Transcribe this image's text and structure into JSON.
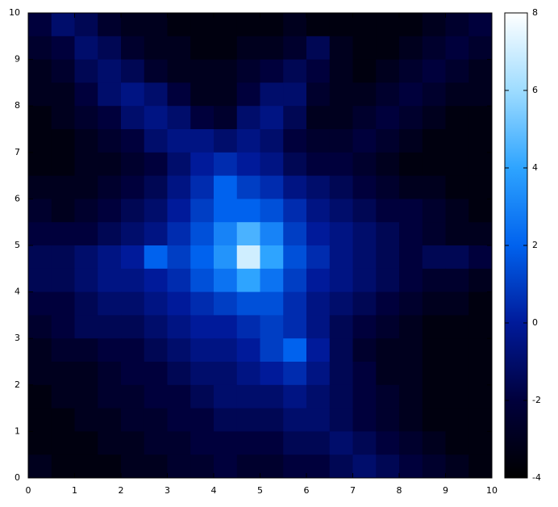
{
  "chart_data": {
    "type": "heatmap",
    "x": [
      0.25,
      0.75,
      1.25,
      1.75,
      2.25,
      2.75,
      3.25,
      3.75,
      4.25,
      4.75,
      5.25,
      5.75,
      6.25,
      6.75,
      7.25,
      7.75,
      8.25,
      8.75,
      9.25,
      9.75
    ],
    "y": [
      9.75,
      9.25,
      8.75,
      8.25,
      7.75,
      7.25,
      6.75,
      6.25,
      5.75,
      5.25,
      4.75,
      4.25,
      3.75,
      3.25,
      2.75,
      2.25,
      1.75,
      1.25,
      0.75,
      0.25
    ],
    "z": [
      [
        -2,
        -1,
        -1.5,
        -2.5,
        -3,
        -3,
        -3.5,
        -3.5,
        -3.5,
        -3.5,
        -3.5,
        -3,
        -3.5,
        -3.5,
        -3.5,
        -3.5,
        -3.5,
        -3,
        -2.5,
        -2
      ],
      [
        -2.5,
        -2,
        -1,
        -1.5,
        -2.5,
        -3,
        -3,
        -3.5,
        -3.5,
        -3,
        -3,
        -2.5,
        -1.5,
        -3,
        -3.5,
        -3.5,
        -3,
        -2.5,
        -2,
        -2.5
      ],
      [
        -3,
        -2.5,
        -1.5,
        -1,
        -1.5,
        -2.5,
        -3,
        -3,
        -3,
        -2.5,
        -2,
        -1.5,
        -2,
        -3,
        -3.5,
        -3,
        -2.5,
        -2,
        -2.5,
        -3
      ],
      [
        -3,
        -3,
        -2,
        -1,
        -0.5,
        -1,
        -2,
        -3,
        -3,
        -2,
        -1,
        -1,
        -2.5,
        -3,
        -3,
        -2.5,
        -2,
        -2.5,
        -3,
        -3
      ],
      [
        -3.5,
        -3,
        -2.5,
        -2,
        -1,
        -0.5,
        -1,
        -2,
        -2.5,
        -1,
        -0.5,
        -1.5,
        -3,
        -3,
        -2.5,
        -2,
        -2.5,
        -3,
        -3.5,
        -3.5
      ],
      [
        -3.5,
        -3.5,
        -3,
        -2.5,
        -2,
        -1,
        -0.5,
        -0.5,
        -1,
        -0.5,
        -1,
        -2,
        -2.5,
        -2.5,
        -2,
        -2.5,
        -3,
        -3.5,
        -3.5,
        -3.5
      ],
      [
        -3.5,
        -3.5,
        -3,
        -3,
        -2.5,
        -2,
        -1,
        0,
        0.5,
        0,
        -0.5,
        -1.5,
        -2,
        -2,
        -2.5,
        -3,
        -3.5,
        -3.5,
        -3.5,
        -3.5
      ],
      [
        -3,
        -3,
        -3,
        -2.5,
        -2,
        -1.5,
        -0.5,
        0.5,
        2,
        1,
        0.5,
        -0.5,
        -1,
        -1.5,
        -2,
        -2.5,
        -3,
        -3,
        -3.5,
        -3.5
      ],
      [
        -2.5,
        -3,
        -2.5,
        -2,
        -1.5,
        -1,
        0,
        1,
        2,
        2,
        1.5,
        0.5,
        -0.5,
        -1,
        -1.5,
        -2,
        -2,
        -2.5,
        -3,
        -3.5
      ],
      [
        -2,
        -2,
        -2,
        -1.5,
        -1,
        -0.5,
        0.5,
        1.5,
        3,
        4.5,
        3,
        1,
        0,
        -0.5,
        -1,
        -1.5,
        -2,
        -2.5,
        -3,
        -3
      ],
      [
        -1.5,
        -1.5,
        -1,
        -0.5,
        0,
        2,
        1,
        2,
        3.5,
        7,
        4,
        1.5,
        0.5,
        -0.5,
        -1,
        -1.5,
        -2,
        -1.5,
        -1.5,
        -2
      ],
      [
        -1.5,
        -1.5,
        -1,
        -0.5,
        -0.5,
        0,
        0.5,
        1.5,
        2.5,
        4,
        2.5,
        1,
        0,
        -0.5,
        -1,
        -1.5,
        -2,
        -2.5,
        -2.5,
        -3
      ],
      [
        -2,
        -2,
        -1.5,
        -1,
        -1,
        -0.5,
        0,
        0.5,
        1,
        1.5,
        1.5,
        0.5,
        -0.5,
        -1,
        -1.5,
        -2,
        -2.5,
        -3,
        -3,
        -3.5
      ],
      [
        -2.5,
        -2,
        -1.5,
        -1.5,
        -1.5,
        -1,
        -0.5,
        0,
        0,
        0.5,
        1,
        0.5,
        -0.5,
        -1.5,
        -2,
        -2.5,
        -3,
        -3.5,
        -3.5,
        -3.5
      ],
      [
        -3,
        -2.5,
        -2.5,
        -2,
        -2,
        -1.5,
        -1,
        -0.5,
        -0.5,
        0,
        1,
        2,
        0,
        -1.5,
        -2.5,
        -3,
        -3,
        -3.5,
        -3.5,
        -3.5
      ],
      [
        -3,
        -3,
        -3,
        -2.5,
        -2,
        -2,
        -1.5,
        -1,
        -1,
        -0.5,
        0,
        0.5,
        -0.5,
        -1.5,
        -2,
        -3,
        -3,
        -3.5,
        -3.5,
        -3.5
      ],
      [
        -3.5,
        -3,
        -3,
        -2.5,
        -2.5,
        -2,
        -2,
        -1.5,
        -1,
        -1,
        -1,
        -0.5,
        -1,
        -1.5,
        -2,
        -2.5,
        -3,
        -3.5,
        -3.5,
        -3.5
      ],
      [
        -3.5,
        -3.5,
        -3,
        -3,
        -2.5,
        -2.5,
        -2,
        -2,
        -1.5,
        -1.5,
        -1.5,
        -1,
        -1,
        -1.5,
        -2,
        -2.5,
        -3,
        -3.5,
        -3.5,
        -3.5
      ],
      [
        -3.5,
        -3.5,
        -3.5,
        -3,
        -3,
        -2.5,
        -2.5,
        -2,
        -2,
        -2,
        -2,
        -1.5,
        -1.5,
        -1,
        -1.5,
        -2,
        -2.5,
        -3,
        -3.5,
        -3.5
      ],
      [
        -3,
        -3.5,
        -3.5,
        -3.5,
        -3,
        -3,
        -2.5,
        -2.5,
        -2,
        -2.5,
        -2.5,
        -2,
        -2,
        -1.5,
        -1,
        -1.5,
        -2,
        -2.5,
        -3,
        -3.5
      ]
    ],
    "xlim": [
      0,
      10
    ],
    "ylim": [
      0,
      10
    ],
    "xticks": [
      0,
      1,
      2,
      3,
      4,
      5,
      6,
      7,
      8,
      9,
      10
    ],
    "yticks": [
      0,
      1,
      2,
      3,
      4,
      5,
      6,
      7,
      8,
      9,
      10
    ],
    "zlim": [
      -4,
      8
    ],
    "zticks": [
      -4,
      -2,
      0,
      2,
      4,
      6,
      8
    ],
    "colorscale": [
      "#000000",
      "#00003c",
      "#001a9a",
      "#0062ee",
      "#2ea4ff",
      "#9edcff",
      "#ffffff"
    ]
  }
}
